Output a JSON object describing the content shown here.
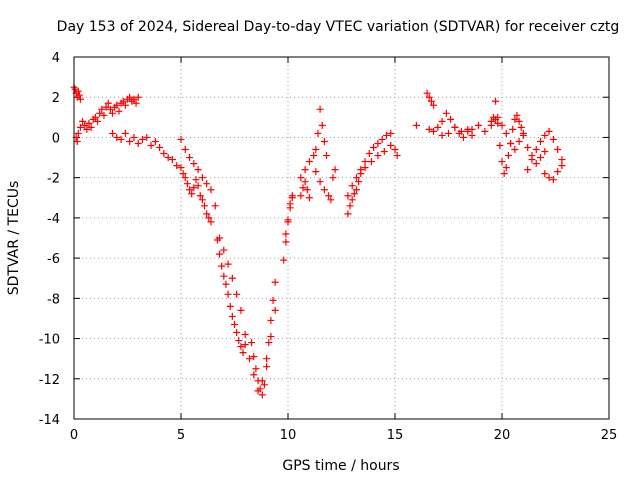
{
  "chart_data": {
    "type": "scatter",
    "title": "Day 153 of 2024, Sidereal Day-to-day VTEC variation (SDTVAR) for receiver cztg",
    "xlabel": "GPS time / hours",
    "ylabel": "SDTVAR / TECUs",
    "xlim": [
      0,
      25
    ],
    "ylim": [
      -14,
      4
    ],
    "xticks": [
      0,
      5,
      10,
      15,
      20,
      25
    ],
    "yticks": [
      4,
      2,
      0,
      -2,
      -4,
      -6,
      -8,
      -10,
      -12,
      -14
    ],
    "grid": true,
    "marker": "plus",
    "color": "#ff0000",
    "series": [
      {
        "name": "SDTVAR",
        "x": [
          0.0,
          0.05,
          0.1,
          0.15,
          0.2,
          0.25,
          0.3,
          0.1,
          0.15,
          0.2,
          0.3,
          0.4,
          0.5,
          0.6,
          0.7,
          0.8,
          0.9,
          1.0,
          1.1,
          1.2,
          1.3,
          1.4,
          1.5,
          1.6,
          1.7,
          1.8,
          1.9,
          2.0,
          2.1,
          2.2,
          2.3,
          2.4,
          2.5,
          2.6,
          2.7,
          2.8,
          2.9,
          3.0,
          1.8,
          2.0,
          2.2,
          2.4,
          2.6,
          2.8,
          3.0,
          3.2,
          3.4,
          3.6,
          3.8,
          4.0,
          4.2,
          4.4,
          4.6,
          4.8,
          5.0,
          5.1,
          5.2,
          5.3,
          5.4,
          5.5,
          5.6,
          5.7,
          5.8,
          5.9,
          6.0,
          6.1,
          6.2,
          6.3,
          6.4,
          5.0,
          5.2,
          5.4,
          5.6,
          5.8,
          6.0,
          6.2,
          6.4,
          6.6,
          6.7,
          6.8,
          6.9,
          7.0,
          7.1,
          7.2,
          7.3,
          7.4,
          7.5,
          7.6,
          7.7,
          7.8,
          7.9,
          8.0,
          6.8,
          7.0,
          7.2,
          7.4,
          7.6,
          7.8,
          8.0,
          8.3,
          8.4,
          8.5,
          8.6,
          8.7,
          8.8,
          8.9,
          9.0,
          9.1,
          9.2,
          9.3,
          9.4,
          8.2,
          8.4,
          8.6,
          8.8,
          9.0,
          9.2,
          9.4,
          9.8,
          9.9,
          10.0,
          10.1,
          10.2,
          9.9,
          10.0,
          10.1,
          10.2,
          10.6,
          10.7,
          10.8,
          10.9,
          11.0,
          10.6,
          10.8,
          11.0,
          11.2,
          11.3,
          11.4,
          11.5,
          11.6,
          11.7,
          11.8,
          11.3,
          11.5,
          11.7,
          11.9,
          12.0,
          12.1,
          12.2,
          12.8,
          12.9,
          13.0,
          13.1,
          13.2,
          13.3,
          13.4,
          12.8,
          13.0,
          13.2,
          13.4,
          13.6,
          13.8,
          14.0,
          14.2,
          14.4,
          14.6,
          14.8,
          13.6,
          13.9,
          14.2,
          14.5,
          14.8,
          15.0,
          15.1,
          16.0,
          16.5,
          16.6,
          16.7,
          16.8,
          16.6,
          16.8,
          17.0,
          17.2,
          17.4,
          17.6,
          17.8,
          18.0,
          18.2,
          18.4,
          18.6,
          17.2,
          17.5,
          17.8,
          18.1,
          18.4,
          18.6,
          18.9,
          19.2,
          19.5,
          19.6,
          19.7,
          19.8,
          19.9,
          20.0,
          20.1,
          20.2,
          20.3,
          20.4,
          20.5,
          20.6,
          20.7,
          20.8,
          20.9,
          21.0,
          19.8,
          20.0,
          20.2,
          20.4,
          20.6,
          20.8,
          21.0,
          21.2,
          21.4,
          21.6,
          21.8,
          22.0,
          21.2,
          21.4,
          21.6,
          21.8,
          22.0,
          22.2,
          22.4,
          22.6,
          22.8,
          22.0,
          22.2,
          22.4,
          22.6,
          22.8,
          19.5,
          19.7
        ],
        "y": [
          2.5,
          2.4,
          2.2,
          2.0,
          2.3,
          2.1,
          1.9,
          0.0,
          -0.2,
          0.2,
          0.5,
          0.8,
          0.6,
          0.4,
          0.7,
          0.5,
          0.9,
          1.0,
          0.8,
          1.2,
          1.4,
          1.1,
          1.5,
          1.7,
          1.4,
          1.2,
          1.5,
          1.6,
          1.3,
          1.7,
          1.8,
          1.6,
          1.9,
          2.0,
          1.8,
          1.9,
          1.7,
          2.0,
          0.2,
          0.0,
          -0.1,
          0.2,
          -0.2,
          0.0,
          -0.3,
          -0.1,
          0.0,
          -0.4,
          -0.2,
          -0.5,
          -0.8,
          -1.0,
          -1.1,
          -1.4,
          -1.5,
          -1.8,
          -2.0,
          -2.3,
          -2.6,
          -2.8,
          -2.5,
          -2.1,
          -2.4,
          -2.9,
          -3.1,
          -3.4,
          -3.8,
          -4.0,
          -4.2,
          -0.1,
          -0.6,
          -1.0,
          -1.3,
          -1.6,
          -2.0,
          -2.3,
          -2.6,
          -3.4,
          -5.1,
          -5.8,
          -6.4,
          -6.9,
          -7.3,
          -7.8,
          -8.4,
          -8.9,
          -9.3,
          -9.7,
          -10.1,
          -10.4,
          -10.7,
          -10.3,
          -5.0,
          -5.6,
          -6.3,
          -7.0,
          -7.8,
          -8.6,
          -9.8,
          -10.2,
          -10.9,
          -11.5,
          -12.1,
          -12.5,
          -12.8,
          -12.3,
          -11.4,
          -10.2,
          -9.1,
          -8.1,
          -7.2,
          -11.0,
          -11.8,
          -12.6,
          -12.1,
          -11.0,
          -9.9,
          -8.6,
          -6.1,
          -5.2,
          -4.2,
          -3.5,
          -2.9,
          -4.8,
          -4.1,
          -3.3,
          -3.0,
          -2.9,
          -2.5,
          -2.2,
          -2.6,
          -3.0,
          -2.0,
          -1.6,
          -1.2,
          -0.9,
          -0.6,
          0.2,
          1.4,
          0.6,
          -0.2,
          -0.9,
          -1.7,
          -2.2,
          -2.6,
          -2.9,
          -3.1,
          -2.0,
          -1.6,
          -3.8,
          -3.4,
          -3.1,
          -2.8,
          -2.6,
          -2.2,
          -1.8,
          -2.9,
          -2.4,
          -2.0,
          -1.6,
          -1.2,
          -0.8,
          -0.5,
          -0.3,
          -0.1,
          0.1,
          0.2,
          -1.5,
          -1.2,
          -0.9,
          -0.7,
          -0.4,
          -0.6,
          -0.9,
          0.6,
          2.2,
          2.0,
          1.8,
          1.6,
          0.4,
          0.3,
          0.5,
          0.8,
          1.2,
          0.9,
          0.5,
          0.2,
          0.0,
          0.3,
          0.4,
          0.1,
          0.2,
          0.5,
          0.3,
          0.4,
          0.1,
          0.6,
          0.3,
          0.8,
          1.0,
          1.8,
          0.7,
          -0.4,
          -1.2,
          -1.8,
          -1.5,
          -0.9,
          -0.3,
          0.4,
          0.9,
          1.1,
          0.8,
          0.5,
          0.2,
          1.0,
          0.6,
          0.2,
          -0.3,
          -0.6,
          -0.2,
          0.1,
          -0.5,
          -0.9,
          -1.3,
          -1.0,
          -0.7,
          -1.6,
          -1.1,
          -0.6,
          -0.2,
          0.1,
          0.3,
          -0.1,
          -0.6,
          -1.1,
          -1.8,
          -2.0,
          -2.1,
          -1.7,
          -1.4,
          0.6,
          0.9
        ]
      }
    ]
  }
}
